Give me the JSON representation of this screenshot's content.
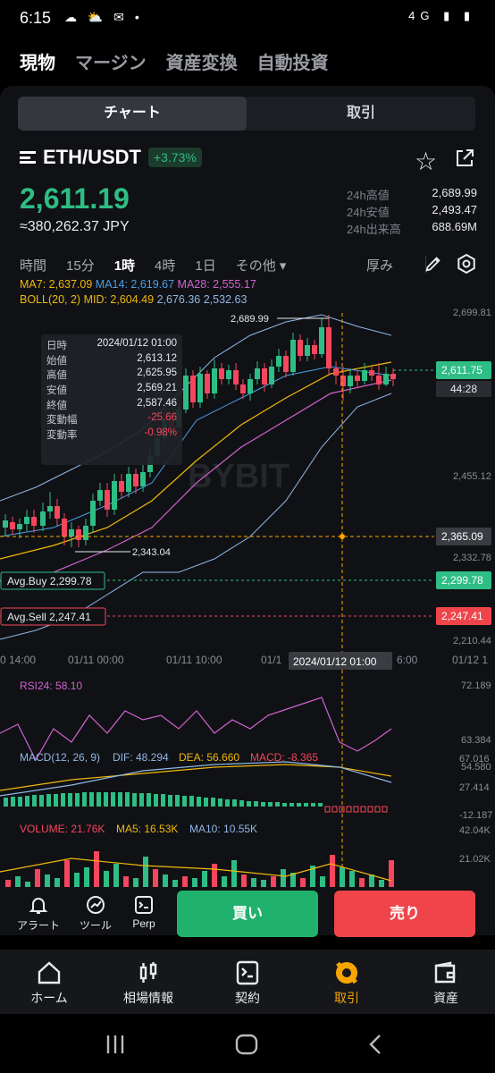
{
  "status": {
    "time": "6:15",
    "network": "4G"
  },
  "modes": [
    "現物",
    "マージン",
    "資産変換",
    "自動投資"
  ],
  "segments": {
    "chart": "チャート",
    "trade": "取引"
  },
  "pair": {
    "name": "ETH/USDT",
    "change": "+3.73%"
  },
  "price": {
    "last": "2,611.19",
    "jpy": "≈380,262.37 JPY"
  },
  "stats": [
    {
      "k": "24h高値",
      "v": "2,689.99"
    },
    {
      "k": "24h安値",
      "v": "2,493.47"
    },
    {
      "k": "24h出来高",
      "v": "688.69M"
    }
  ],
  "timeframes": [
    "時間",
    "15分",
    "1時",
    "4時",
    "1日",
    "その他 ▾"
  ],
  "active_timeframe": "1時",
  "depth_label": "厚み",
  "indicators": {
    "ma7": "MA7: 2,637.09",
    "ma14": "MA14: 2,619.67",
    "ma28": "MA28: 2,555.17",
    "boll": "BOLL(20, 2) MID: 2,604.49",
    "boll_up": "2,676.36",
    "boll_dn": "2,532.63"
  },
  "tooltip": [
    {
      "k": "日時",
      "v": "2024/01/12 01:00"
    },
    {
      "k": "始値",
      "v": "2,613.12"
    },
    {
      "k": "高値",
      "v": "2,625.95"
    },
    {
      "k": "安値",
      "v": "2,569.21"
    },
    {
      "k": "終値",
      "v": "2,587.46"
    },
    {
      "k": "変動幅",
      "v": "-25.66",
      "neg": true
    },
    {
      "k": "変動率",
      "v": "-0.98%",
      "neg": true
    }
  ],
  "chart_labels": {
    "high_mark": "2,689.99",
    "low_mark": "2,343.04",
    "avg_buy": "Avg.Buy 2,299.78",
    "avg_sell": "Avg.Sell 2,247.41",
    "watermark": "BYBIT",
    "crosshair_date": "2024/01/12 01:00",
    "countdown": "44:28"
  },
  "price_axis": [
    "2,699.81",
    "2,455.12",
    "2,332.78",
    "2,210.44"
  ],
  "axis_tags": {
    "last": "2,611.75",
    "cross": "2,365.09",
    "buy": "2,299.78",
    "sell": "2,247.41"
  },
  "time_axis": [
    "0 14:00",
    "01/11 00:00",
    "01/11 10:00",
    "01/1",
    "6:00",
    "01/12 1"
  ],
  "rsi": {
    "label": "RSI24: 58.10",
    "axis": [
      "72.189",
      "63.384",
      "54.580"
    ]
  },
  "macd": {
    "label_main": "MACD(12, 26, 9)",
    "dif": "DIF: 48.294",
    "dea": "DEA: 56.660",
    "macd": "MACD: -8.365",
    "axis": [
      "67.016",
      "27.414",
      "-12.187"
    ]
  },
  "volume": {
    "label": "VOLUME: 21.76K",
    "ma5": "MA5: 16.53K",
    "ma10": "MA10: 10.55K",
    "axis": [
      "42.04K",
      "21.02K"
    ]
  },
  "actions": {
    "alert": "アラート",
    "tools": "ツール",
    "perp": "Perp",
    "buy": "買い",
    "sell": "売り"
  },
  "nav": [
    "ホーム",
    "相場情報",
    "契約",
    "取引",
    "資産"
  ],
  "nav_active": "取引",
  "colors": {
    "up": "#2ebd85",
    "down": "#f6465d",
    "accent": "#f7a600",
    "ma7": "#f0b90b",
    "ma14": "#4a9ee6",
    "ma28": "#d163d1"
  }
}
